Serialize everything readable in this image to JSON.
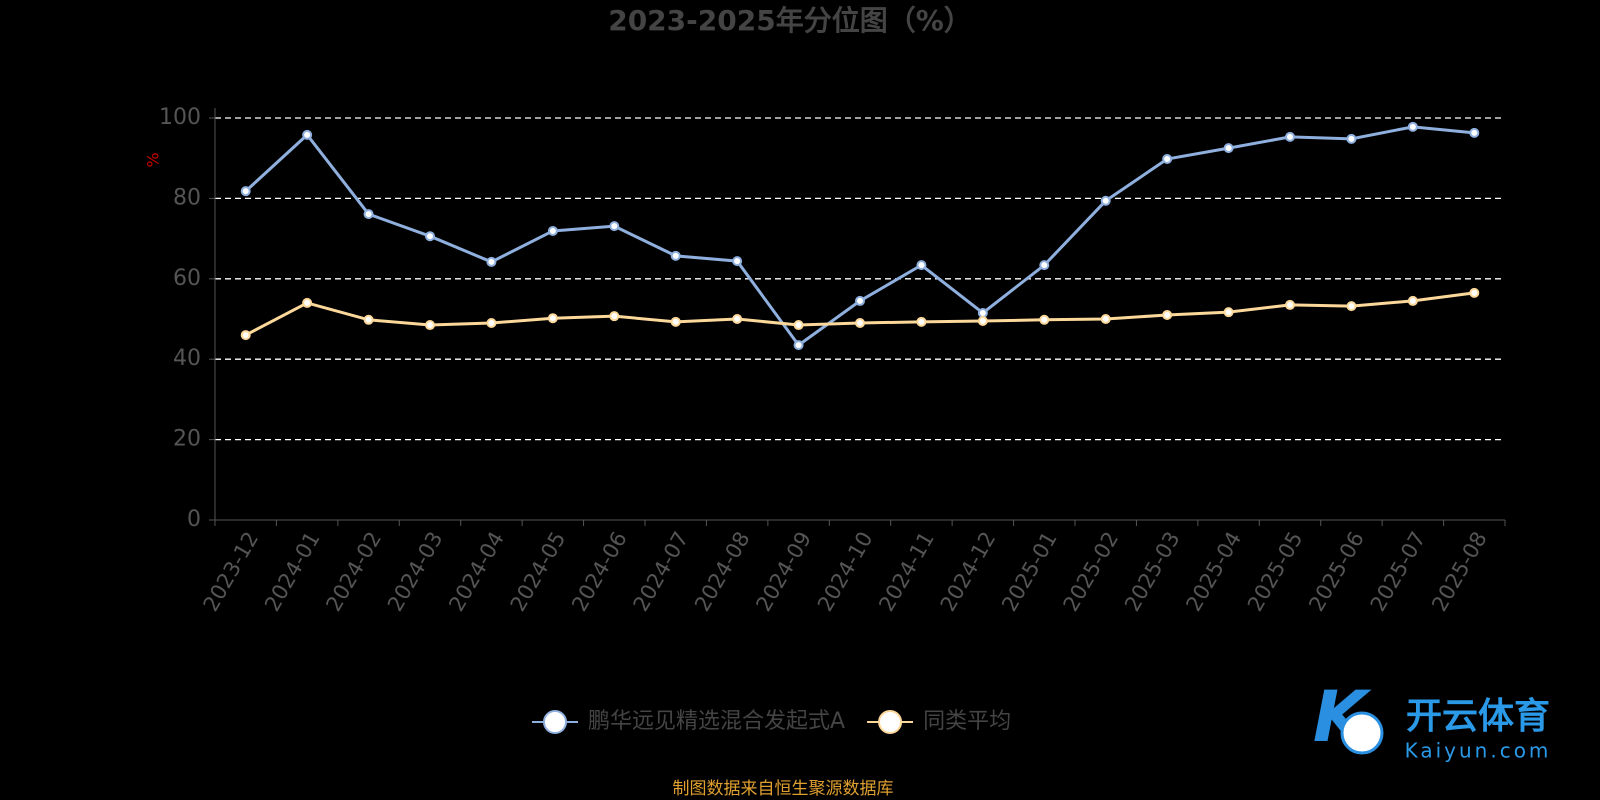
{
  "chart_data": {
    "type": "line",
    "title": "2023-2025年分位图（%）",
    "y_label": "%",
    "categories": [
      "2023-12",
      "2024-01",
      "2024-02",
      "2024-03",
      "2024-04",
      "2024-05",
      "2024-06",
      "2024-07",
      "2024-08",
      "2024-09",
      "2024-10",
      "2024-11",
      "2024-12",
      "2025-01",
      "2025-02",
      "2025-03",
      "2025-04",
      "2025-05",
      "2025-06",
      "2025-07",
      "2025-08"
    ],
    "series": [
      {
        "name": "鹏华远见精选混合发起式A",
        "color": "#8fb0de",
        "values": [
          81.8,
          95.8,
          76.1,
          70.6,
          64.2,
          71.9,
          73.1,
          65.7,
          64.4,
          43.5,
          54.5,
          63.4,
          51.5,
          63.4,
          79.4,
          89.8,
          92.5,
          95.3,
          94.8,
          97.8,
          96.3
        ]
      },
      {
        "name": "同类平均",
        "color": "#fcd89a",
        "values": [
          46.0,
          54.0,
          49.8,
          48.5,
          49.0,
          50.2,
          50.7,
          49.3,
          50.0,
          48.5,
          49.0,
          49.3,
          49.5,
          49.8,
          50.0,
          51.0,
          51.7,
          53.5,
          53.2,
          54.5,
          56.5
        ]
      }
    ],
    "ylim": [
      0,
      100
    ],
    "yticks": [
      0,
      20,
      40,
      60,
      80,
      100
    ],
    "grid": true,
    "source": "制图数据来自恒生聚源数据库",
    "watermark": {
      "brand": "开云体育",
      "site": "Kaiyun.com"
    }
  }
}
